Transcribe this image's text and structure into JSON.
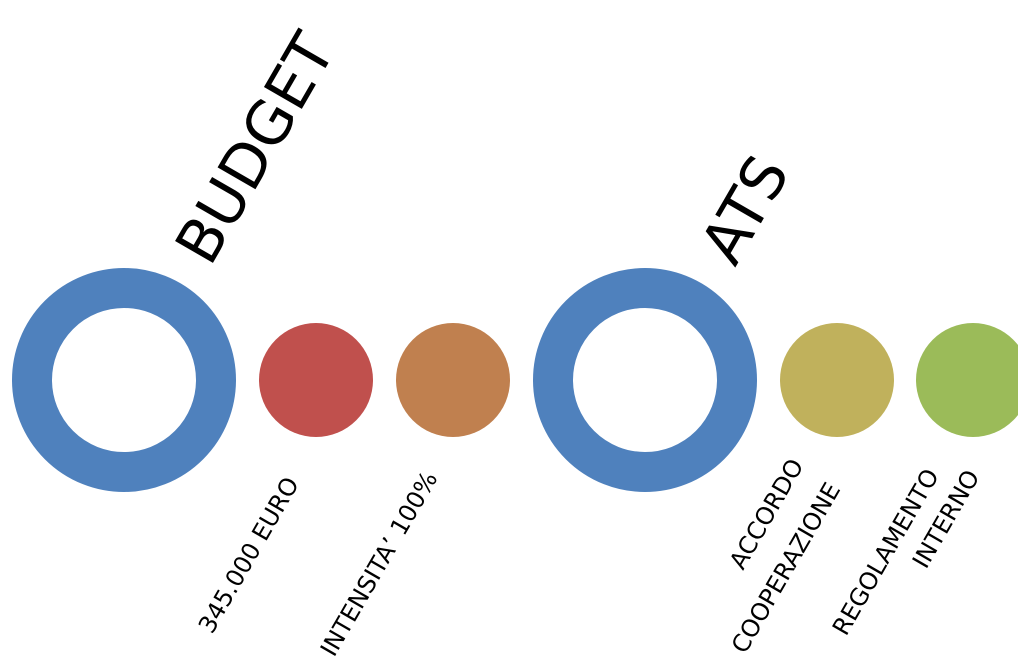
{
  "colors": {
    "ring": "#4f81bd",
    "euro": "#c0504d",
    "intensita": "#c0804f",
    "accordo": "#c0b15c",
    "regolamento": "#9bbb59",
    "background": "#ffffff",
    "text": "#000000"
  },
  "groups": [
    {
      "title": "BUDGET",
      "items": [
        {
          "lines": [
            "345.000  EURO"
          ]
        },
        {
          "lines": [
            "INTENSITA’ 100%"
          ]
        }
      ]
    },
    {
      "title": "ATS",
      "items": [
        {
          "lines": [
            "ACCORDO",
            "COOPERAZIONE"
          ]
        },
        {
          "lines": [
            "REGOLAMENTO",
            "INTERNO"
          ]
        }
      ]
    }
  ]
}
